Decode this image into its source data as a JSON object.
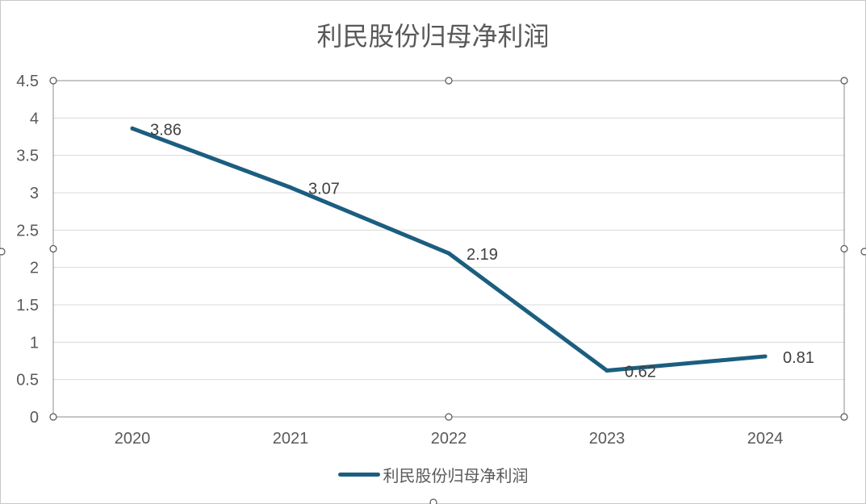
{
  "chart_data": {
    "type": "line",
    "title": "利民股份归母净利润",
    "categories": [
      "2020",
      "2021",
      "2022",
      "2023",
      "2024"
    ],
    "series": [
      {
        "name": "利民股份归母净利润",
        "values": [
          3.86,
          3.07,
          2.19,
          0.62,
          0.81
        ],
        "color": "#1b5e7f"
      }
    ],
    "data_labels": [
      "3.86",
      "3.07",
      "2.19",
      "0.62",
      "0.81"
    ],
    "y_ticks": [
      "0",
      "0.5",
      "1",
      "1.5",
      "2",
      "2.5",
      "3",
      "3.5",
      "4",
      "4.5"
    ],
    "ylim": [
      0,
      4.5
    ],
    "grid": true,
    "legend": "bottom"
  }
}
